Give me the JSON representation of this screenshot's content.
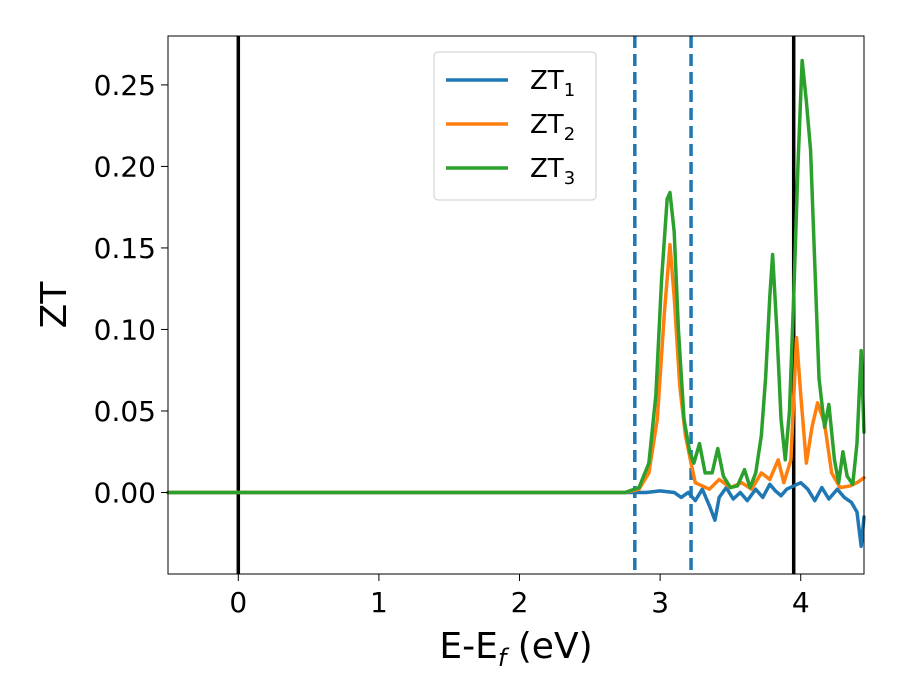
{
  "chart_data": {
    "type": "line",
    "xlabel": "E-E",
    "xlabel_sub": "f",
    "xlabel_unit": " (eV)",
    "ylabel": "ZT",
    "xlim": [
      -0.5,
      4.45
    ],
    "ylim": [
      -0.05,
      0.28
    ],
    "xticks": [
      0,
      1,
      2,
      3,
      4
    ],
    "xtick_labels": [
      "0",
      "1",
      "2",
      "3",
      "4"
    ],
    "yticks": [
      0.0,
      0.05,
      0.1,
      0.15,
      0.2,
      0.25
    ],
    "ytick_labels": [
      "0.00",
      "0.05",
      "0.10",
      "0.15",
      "0.20",
      "0.25"
    ],
    "grid": false,
    "legend_position": "top-center",
    "vlines": [
      {
        "x": 0.0,
        "style": "solid",
        "color": "#000000"
      },
      {
        "x": 3.95,
        "style": "solid",
        "color": "#000000"
      },
      {
        "x": 2.82,
        "style": "dashed",
        "color": "#1f77b4"
      },
      {
        "x": 3.22,
        "style": "dashed",
        "color": "#1f77b4"
      }
    ],
    "series": [
      {
        "name": "ZT",
        "name_sub": "1",
        "color": "#1f77b4",
        "points": [
          [
            -0.5,
            0
          ],
          [
            2.7,
            0
          ],
          [
            2.9,
            0.0
          ],
          [
            3.0,
            0.001
          ],
          [
            3.1,
            0.0
          ],
          [
            3.15,
            -0.003
          ],
          [
            3.2,
            0.0
          ],
          [
            3.25,
            -0.005
          ],
          [
            3.3,
            0.002
          ],
          [
            3.35,
            -0.008
          ],
          [
            3.39,
            -0.017
          ],
          [
            3.42,
            -0.003
          ],
          [
            3.47,
            0.003
          ],
          [
            3.52,
            -0.004
          ],
          [
            3.57,
            0.0
          ],
          [
            3.62,
            -0.005
          ],
          [
            3.68,
            0.002
          ],
          [
            3.73,
            -0.003
          ],
          [
            3.78,
            0.005
          ],
          [
            3.82,
            0.001
          ],
          [
            3.86,
            -0.002
          ],
          [
            3.9,
            0.002
          ],
          [
            3.95,
            0.004
          ],
          [
            4.0,
            0.006
          ],
          [
            4.05,
            0.002
          ],
          [
            4.1,
            -0.005
          ],
          [
            4.15,
            0.003
          ],
          [
            4.2,
            -0.004
          ],
          [
            4.26,
            0.002
          ],
          [
            4.31,
            -0.003
          ],
          [
            4.36,
            -0.006
          ],
          [
            4.4,
            -0.012
          ],
          [
            4.43,
            -0.033
          ],
          [
            4.45,
            -0.015
          ]
        ]
      },
      {
        "name": "ZT",
        "name_sub": "2",
        "color": "#ff7f0e",
        "points": [
          [
            -0.5,
            0
          ],
          [
            2.75,
            0
          ],
          [
            2.85,
            0.002
          ],
          [
            2.92,
            0.012
          ],
          [
            2.98,
            0.045
          ],
          [
            3.03,
            0.11
          ],
          [
            3.07,
            0.152
          ],
          [
            3.1,
            0.12
          ],
          [
            3.14,
            0.065
          ],
          [
            3.18,
            0.035
          ],
          [
            3.22,
            0.018
          ],
          [
            3.25,
            0.006
          ],
          [
            3.3,
            0.004
          ],
          [
            3.35,
            0.002
          ],
          [
            3.42,
            0.008
          ],
          [
            3.5,
            0.003
          ],
          [
            3.58,
            0.006
          ],
          [
            3.65,
            0.002
          ],
          [
            3.72,
            0.012
          ],
          [
            3.78,
            0.008
          ],
          [
            3.84,
            0.02
          ],
          [
            3.88,
            0.006
          ],
          [
            3.93,
            0.02
          ],
          [
            3.97,
            0.095
          ],
          [
            4.0,
            0.06
          ],
          [
            4.04,
            0.018
          ],
          [
            4.08,
            0.04
          ],
          [
            4.12,
            0.055
          ],
          [
            4.17,
            0.042
          ],
          [
            4.22,
            0.012
          ],
          [
            4.28,
            0.003
          ],
          [
            4.35,
            0.004
          ],
          [
            4.4,
            0.006
          ],
          [
            4.45,
            0.009
          ]
        ]
      },
      {
        "name": "ZT",
        "name_sub": "3",
        "color": "#2ca02c",
        "points": [
          [
            -0.5,
            0
          ],
          [
            2.75,
            0
          ],
          [
            2.85,
            0.003
          ],
          [
            2.92,
            0.018
          ],
          [
            2.97,
            0.06
          ],
          [
            3.01,
            0.13
          ],
          [
            3.05,
            0.18
          ],
          [
            3.07,
            0.184
          ],
          [
            3.1,
            0.16
          ],
          [
            3.13,
            0.1
          ],
          [
            3.17,
            0.045
          ],
          [
            3.21,
            0.025
          ],
          [
            3.24,
            0.018
          ],
          [
            3.28,
            0.03
          ],
          [
            3.32,
            0.012
          ],
          [
            3.37,
            0.012
          ],
          [
            3.41,
            0.027
          ],
          [
            3.45,
            0.01
          ],
          [
            3.5,
            0.003
          ],
          [
            3.55,
            0.004
          ],
          [
            3.6,
            0.014
          ],
          [
            3.64,
            0.003
          ],
          [
            3.68,
            0.012
          ],
          [
            3.72,
            0.035
          ],
          [
            3.75,
            0.07
          ],
          [
            3.78,
            0.12
          ],
          [
            3.8,
            0.146
          ],
          [
            3.83,
            0.1
          ],
          [
            3.86,
            0.045
          ],
          [
            3.89,
            0.02
          ],
          [
            3.92,
            0.05
          ],
          [
            3.95,
            0.12
          ],
          [
            3.98,
            0.2
          ],
          [
            4.01,
            0.265
          ],
          [
            4.04,
            0.24
          ],
          [
            4.07,
            0.21
          ],
          [
            4.1,
            0.14
          ],
          [
            4.13,
            0.07
          ],
          [
            4.17,
            0.04
          ],
          [
            4.2,
            0.054
          ],
          [
            4.24,
            0.02
          ],
          [
            4.27,
            0.006
          ],
          [
            4.3,
            0.025
          ],
          [
            4.33,
            0.01
          ],
          [
            4.37,
            0.005
          ],
          [
            4.4,
            0.03
          ],
          [
            4.43,
            0.087
          ],
          [
            4.45,
            0.037
          ]
        ]
      }
    ]
  }
}
